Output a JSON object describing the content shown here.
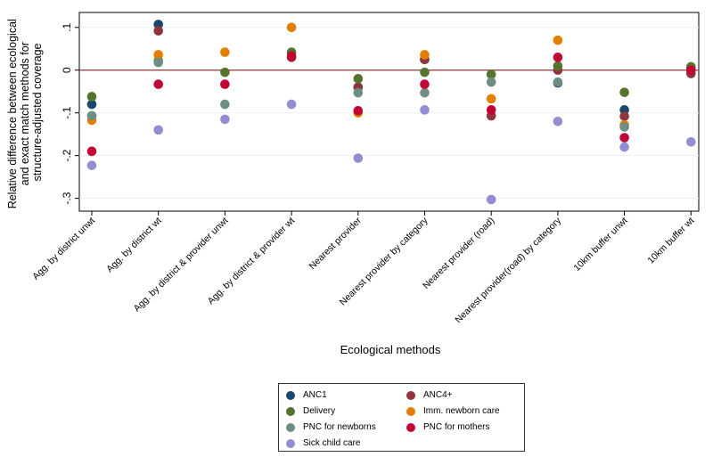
{
  "chart_data": {
    "type": "scatter",
    "title": "",
    "ylabel_lines": [
      "Relative difference between ecological",
      "and exact match methods for",
      "structure-adjusted coverage"
    ],
    "xlabel": "Ecological methods",
    "ylim": [
      -0.33,
      0.135
    ],
    "yticks": [
      0.1,
      0,
      -0.1,
      -0.2,
      -0.3
    ],
    "ytick_labels": [
      ".1",
      "0",
      "-.1",
      "-.2",
      "-.3"
    ],
    "reference_line_y": 0,
    "categories": [
      "Agg. by district unwt",
      "Agg. by district wt",
      "Agg. by district & provider unwt",
      "Agg. by district & provider wt",
      "Nearest provider",
      "Nearest provider by category",
      "Nearest provider (road)",
      "Nearest provider(road) by category",
      "10km buffer unwt",
      "10km buffer wt"
    ],
    "series": [
      {
        "name": "ANC1",
        "color": "#1a476f",
        "values": [
          -0.08,
          0.107,
          null,
          null,
          -0.04,
          0.025,
          null,
          -0.03,
          -0.093,
          0.005
        ]
      },
      {
        "name": "ANC4+",
        "color": "#90353b",
        "values": [
          -0.107,
          0.092,
          null,
          0.03,
          -0.04,
          0.025,
          -0.107,
          0.0,
          -0.108,
          -0.008
        ]
      },
      {
        "name": "Delivery",
        "color": "#55752f",
        "values": [
          -0.062,
          0.022,
          -0.005,
          0.042,
          -0.02,
          -0.005,
          -0.01,
          0.01,
          -0.052,
          0.008
        ]
      },
      {
        "name": "Imm. newborn care",
        "color": "#e37e00",
        "values": [
          -0.117,
          0.036,
          0.042,
          0.1,
          -0.1,
          0.036,
          -0.067,
          0.07,
          -0.128,
          null
        ]
      },
      {
        "name": "PNC for newborns",
        "color": "#6e8e84",
        "values": [
          -0.107,
          0.018,
          -0.08,
          null,
          -0.053,
          -0.053,
          -0.028,
          -0.028,
          -0.133,
          null
        ]
      },
      {
        "name": "PNC for mothers",
        "color": "#c10534",
        "values": [
          -0.19,
          -0.033,
          -0.033,
          0.033,
          -0.095,
          -0.033,
          -0.093,
          0.03,
          -0.158,
          0.0
        ]
      },
      {
        "name": "Sick child care",
        "color": "#938dd2",
        "values": [
          -0.223,
          -0.14,
          -0.115,
          -0.08,
          -0.206,
          -0.093,
          -0.303,
          -0.12,
          -0.18,
          -0.168
        ]
      }
    ],
    "legend_position": "bottom",
    "legend_order": [
      "ANC1",
      "ANC4+",
      "Delivery",
      "Imm. newborn care",
      "PNC for newborns",
      "PNC for mothers",
      "Sick child care"
    ]
  }
}
